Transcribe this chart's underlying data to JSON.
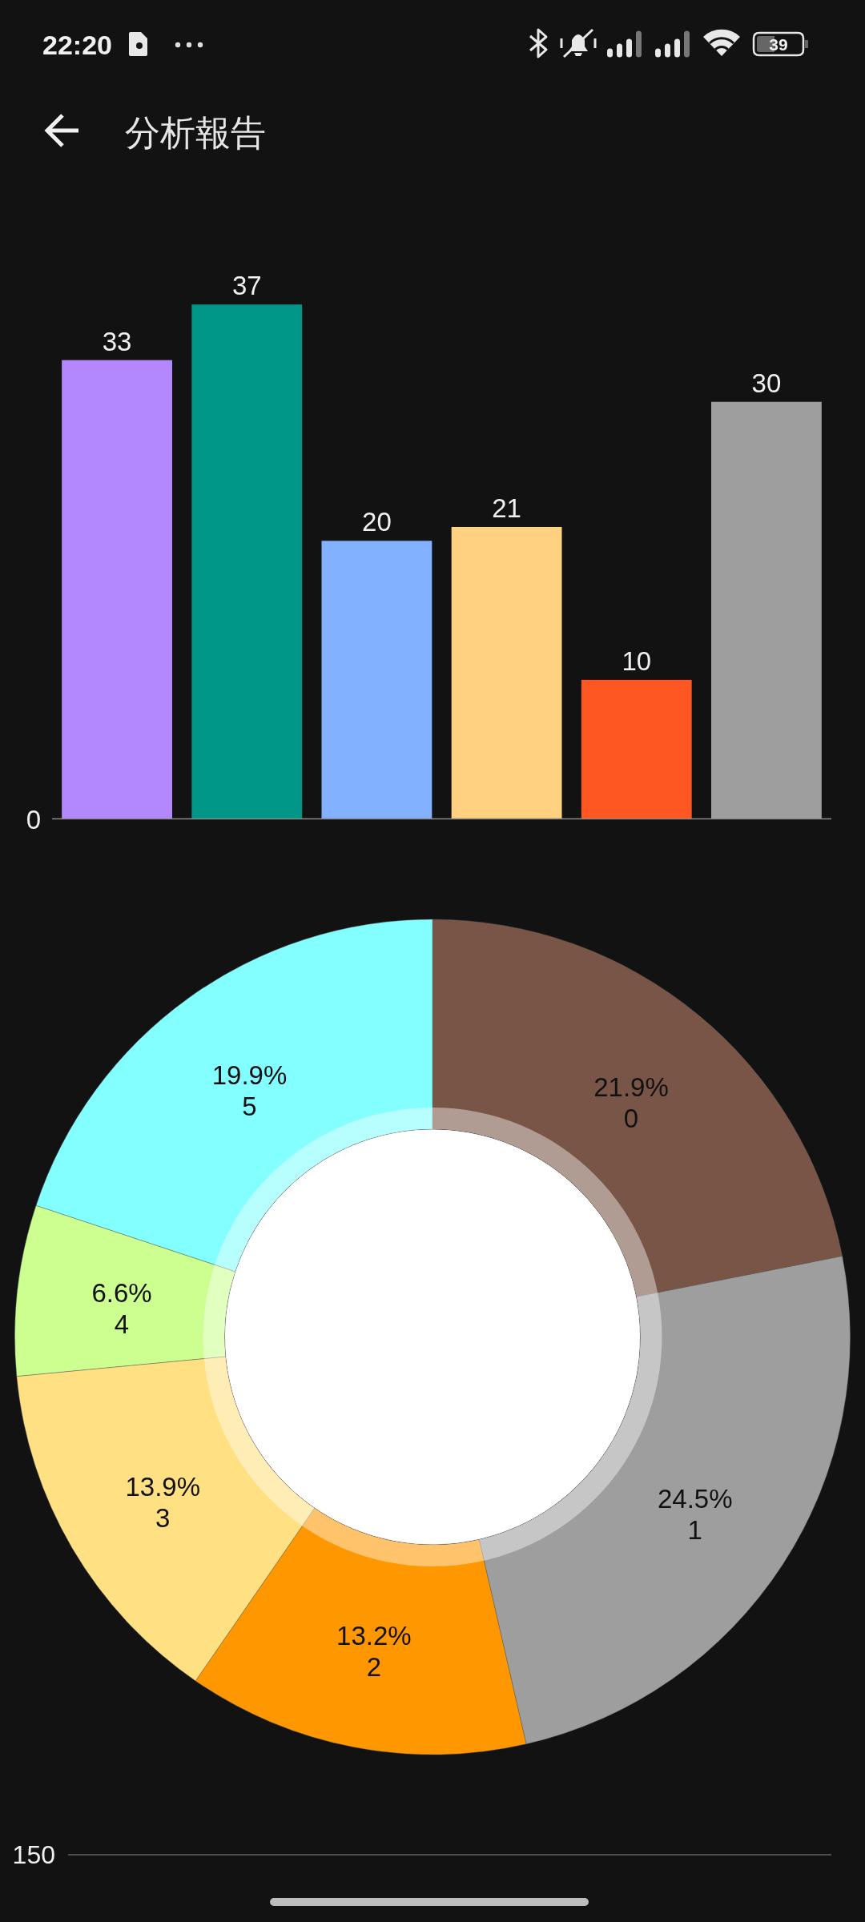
{
  "chart_data": [
    {
      "type": "bar",
      "title": "分析報告",
      "annotations": [
        "22:20",
        "39",
        "0"
      ],
      "categories": [
        null,
        null,
        null,
        null,
        null,
        null
      ],
      "values": [
        33,
        37,
        20,
        21,
        10,
        30
      ],
      "colors": [
        "#b388ff",
        "#009688",
        "#82b1ff",
        "#ffd180",
        "#ff5722",
        "#9e9e9e"
      ],
      "data_labels": true
    },
    {
      "type": "donut",
      "categories": [
        "0",
        "1",
        "2",
        "3",
        "4",
        "5"
      ],
      "values": [
        21.9,
        24.5,
        13.2,
        13.9,
        6.6,
        19.9
      ],
      "value_labels": [
        "21.9%",
        "24.5%",
        "13.2%",
        "13.9%",
        "6.6%",
        "19.9%"
      ],
      "colors": [
        "#795548",
        "#9e9e9e",
        "#ff9800",
        "#ffe082",
        "#ccff90",
        "#84ffff"
      ]
    },
    {
      "type": "other",
      "annotations": [
        "150"
      ]
    }
  ]
}
